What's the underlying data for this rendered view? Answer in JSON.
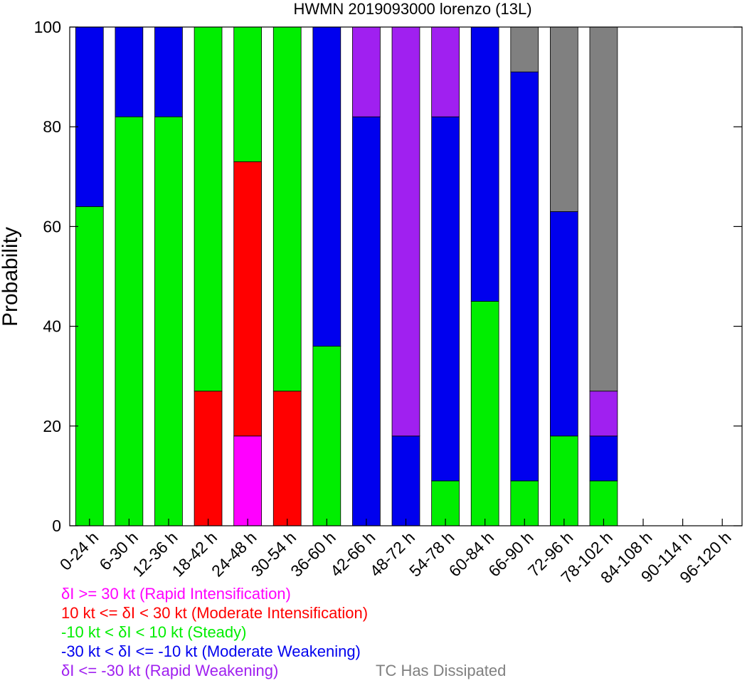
{
  "chart_data": {
    "type": "bar",
    "stacked": true,
    "title": "HWMN 2019093000 lorenzo (13L)",
    "ylabel": "Probability",
    "xlabel": "",
    "ylim": [
      0,
      100
    ],
    "yticks": [
      "0",
      "20",
      "40",
      "60",
      "80",
      "100"
    ],
    "grid": false,
    "categories": [
      "0-24 h",
      "6-30 h",
      "12-36 h",
      "18-42 h",
      "24-48 h",
      "30-54 h",
      "36-60 h",
      "42-66 h",
      "48-72 h",
      "54-78 h",
      "60-84 h",
      "66-90 h",
      "72-96 h",
      "78-102 h",
      "84-108 h",
      "90-114 h",
      "96-120 h"
    ],
    "series": [
      {
        "name": "δI >= 30 kt (Rapid Intensification)",
        "color": "#ff00ff",
        "values": [
          0,
          0,
          0,
          0,
          18,
          0,
          0,
          0,
          0,
          0,
          0,
          0,
          0,
          0,
          0,
          0,
          0
        ]
      },
      {
        "name": "10 kt <= δI < 30 kt (Moderate Intensification)",
        "color": "#ff0000",
        "values": [
          0,
          0,
          0,
          27,
          55,
          27,
          0,
          0,
          0,
          0,
          0,
          0,
          0,
          0,
          0,
          0,
          0
        ]
      },
      {
        "name": "-10 kt < δI < 10 kt (Steady)",
        "color": "#00ee00",
        "values": [
          64,
          82,
          82,
          73,
          27,
          73,
          36,
          0,
          0,
          9,
          45,
          9,
          18,
          9,
          0,
          0,
          0
        ]
      },
      {
        "name": "-30 kt < δI <= -10 kt (Moderate Weakening)",
        "color": "#0000ee",
        "values": [
          36,
          18,
          18,
          0,
          0,
          0,
          64,
          82,
          18,
          73,
          55,
          82,
          45,
          9,
          0,
          0,
          0
        ]
      },
      {
        "name": "δI <= -30 kt (Rapid Weakening)",
        "color": "#a020f0",
        "values": [
          0,
          0,
          0,
          0,
          0,
          0,
          0,
          18,
          82,
          18,
          0,
          0,
          0,
          9,
          0,
          0,
          0
        ]
      },
      {
        "name": "TC Has Dissipated",
        "color": "#808080",
        "values": [
          0,
          0,
          0,
          0,
          0,
          0,
          0,
          0,
          0,
          0,
          0,
          9,
          37,
          73,
          0,
          0,
          0
        ]
      }
    ]
  },
  "legend": {
    "ri_a": "δ",
    "ri_b": "I >= 30 kt (Rapid Intensification)",
    "mi_a": "10 kt <= ",
    "mi_b": "δ",
    "mi_c": "I < 30 kt (Moderate Intensification)",
    "st_a": "-10 kt < ",
    "st_b": "δ",
    "st_c": "I < 10 kt (Steady)",
    "mw_a": "-30 kt < ",
    "mw_b": "δ",
    "mw_c": "I <= -10 kt (Moderate Weakening)",
    "rw_a": "δ",
    "rw_b": "I <= -30 kt (Rapid Weakening)",
    "dis": "TC Has Dissipated"
  },
  "colors": {
    "rapid_intensification": "#ff00ff",
    "moderate_intensification": "#ff0000",
    "steady": "#00ee00",
    "moderate_weakening": "#0000ee",
    "rapid_weakening": "#a020f0",
    "dissipated": "#808080"
  }
}
